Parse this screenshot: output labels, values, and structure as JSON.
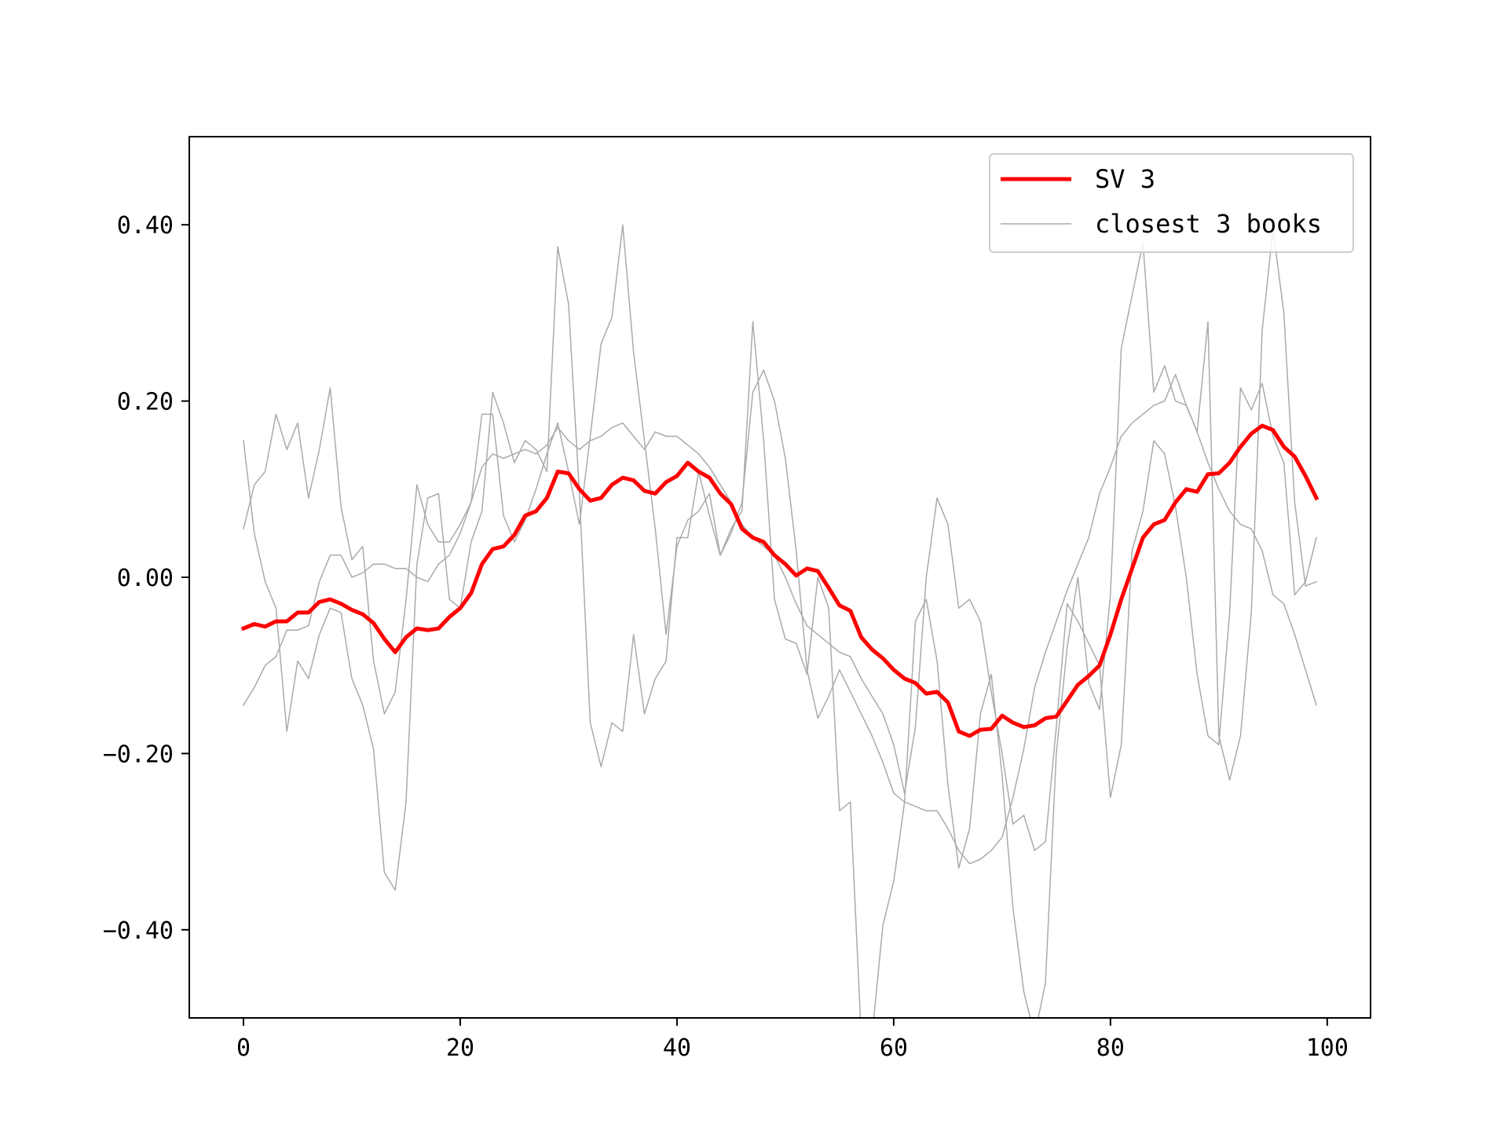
{
  "chart_data": {
    "type": "line",
    "xlim": [
      -5,
      104
    ],
    "ylim": [
      -0.5,
      0.5
    ],
    "x_ticks": [
      0,
      20,
      40,
      60,
      80,
      100
    ],
    "x_tick_labels": [
      "0",
      "20",
      "40",
      "60",
      "80",
      "100"
    ],
    "y_ticks": [
      0.4,
      0.2,
      0.0,
      -0.2,
      -0.4
    ],
    "y_tick_labels": [
      "0.40",
      "0.20",
      "0.00",
      "−0.20",
      "−0.40"
    ],
    "grid": false,
    "legend_position": "top-right",
    "series": [
      {
        "name": "SV 3",
        "color": "#ff0000",
        "emphasis": "thick",
        "values": [
          -0.058,
          -0.053,
          -0.056,
          -0.05,
          -0.05,
          -0.04,
          -0.04,
          -0.028,
          -0.025,
          -0.03,
          -0.037,
          -0.042,
          -0.052,
          -0.07,
          -0.085,
          -0.068,
          -0.058,
          -0.06,
          -0.058,
          -0.045,
          -0.035,
          -0.018,
          0.015,
          0.032,
          0.035,
          0.048,
          0.07,
          0.075,
          0.09,
          0.12,
          0.118,
          0.1,
          0.087,
          0.09,
          0.105,
          0.113,
          0.11,
          0.098,
          0.095,
          0.108,
          0.115,
          0.13,
          0.12,
          0.113,
          0.095,
          0.083,
          0.055,
          0.045,
          0.04,
          0.025,
          0.015,
          0.002,
          0.01,
          0.007,
          -0.012,
          -0.032,
          -0.038,
          -0.068,
          -0.082,
          -0.092,
          -0.105,
          -0.115,
          -0.12,
          -0.132,
          -0.13,
          -0.142,
          -0.175,
          -0.18,
          -0.173,
          -0.172,
          -0.157,
          -0.165,
          -0.17,
          -0.168,
          -0.16,
          -0.158,
          -0.14,
          -0.122,
          -0.112,
          -0.1,
          -0.065,
          -0.025,
          0.01,
          0.045,
          0.06,
          0.065,
          0.085,
          0.1,
          0.097,
          0.117,
          0.118,
          0.13,
          0.148,
          0.163,
          0.172,
          0.167,
          0.148,
          0.137,
          0.115,
          0.09
        ]
      },
      {
        "name": "closest 3 books",
        "color": "#aaaaaa",
        "values": [
          0.155,
          0.05,
          -0.005,
          -0.035,
          -0.175,
          -0.095,
          -0.115,
          -0.065,
          -0.035,
          -0.04,
          -0.115,
          -0.145,
          -0.195,
          -0.335,
          -0.355,
          -0.255,
          0.015,
          0.09,
          0.095,
          -0.025,
          -0.035,
          0.04,
          0.075,
          0.21,
          0.175,
          0.13,
          0.155,
          0.145,
          0.12,
          0.375,
          0.31,
          0.095,
          -0.165,
          -0.215,
          -0.165,
          -0.175,
          -0.065,
          -0.155,
          -0.115,
          -0.095,
          0.045,
          0.045,
          0.12,
          0.07,
          0.025,
          0.05,
          0.085,
          0.21,
          0.235,
          0.2,
          0.135,
          0.03,
          -0.105,
          -0.16,
          -0.135,
          -0.105,
          -0.13,
          -0.155,
          -0.18,
          -0.21,
          -0.245,
          -0.255,
          -0.26,
          -0.265,
          -0.265,
          -0.285,
          -0.31,
          -0.325,
          -0.32,
          -0.31,
          -0.295,
          -0.25,
          -0.195,
          -0.125,
          -0.085,
          -0.05,
          -0.015,
          0.015,
          0.045,
          0.095,
          0.125,
          0.16,
          0.175,
          0.185,
          0.195,
          0.2,
          0.23,
          0.195,
          0.165,
          0.13,
          0.1,
          0.075,
          0.06,
          0.055,
          0.03,
          -0.02,
          -0.03,
          -0.065,
          -0.105,
          -0.145
        ]
      },
      {
        "name": "closest 3 books",
        "color": "#aaaaaa",
        "values": [
          0.055,
          0.105,
          0.12,
          0.185,
          0.145,
          0.175,
          0.09,
          0.145,
          0.215,
          0.08,
          0.02,
          0.035,
          -0.095,
          -0.155,
          -0.13,
          -0.025,
          0.105,
          0.06,
          0.04,
          0.04,
          0.06,
          0.085,
          0.185,
          0.185,
          0.07,
          0.04,
          0.065,
          0.1,
          0.14,
          0.175,
          0.12,
          0.06,
          0.16,
          0.265,
          0.295,
          0.4,
          0.255,
          0.155,
          0.055,
          -0.065,
          0.035,
          0.065,
          0.075,
          0.095,
          0.025,
          0.055,
          0.075,
          0.29,
          0.155,
          -0.025,
          -0.07,
          -0.075,
          -0.11,
          0.0,
          -0.035,
          -0.265,
          -0.255,
          -0.52,
          -0.52,
          -0.395,
          -0.345,
          -0.255,
          -0.05,
          -0.025,
          -0.095,
          -0.235,
          -0.33,
          -0.285,
          -0.155,
          -0.11,
          -0.225,
          -0.375,
          -0.47,
          -0.52,
          -0.46,
          -0.2,
          -0.08,
          0.0,
          -0.12,
          -0.15,
          -0.02,
          0.26,
          0.32,
          0.38,
          0.21,
          0.24,
          0.2,
          0.195,
          0.165,
          0.29,
          -0.18,
          -0.23,
          -0.18,
          -0.04,
          0.28,
          0.395,
          0.3,
          0.085,
          -0.01,
          -0.005
        ]
      },
      {
        "name": "closest 3 books",
        "color": "#aaaaaa",
        "values": [
          -0.145,
          -0.125,
          -0.1,
          -0.09,
          -0.06,
          -0.06,
          -0.055,
          -0.005,
          0.025,
          0.025,
          0.0,
          0.005,
          0.015,
          0.015,
          0.01,
          0.01,
          0.0,
          -0.005,
          0.015,
          0.025,
          0.05,
          0.085,
          0.125,
          0.14,
          0.135,
          0.14,
          0.145,
          0.14,
          0.15,
          0.17,
          0.155,
          0.145,
          0.155,
          0.16,
          0.17,
          0.175,
          0.16,
          0.145,
          0.165,
          0.16,
          0.16,
          0.15,
          0.14,
          0.125,
          0.105,
          0.085,
          0.06,
          0.045,
          0.035,
          0.025,
          0.0,
          -0.03,
          -0.055,
          -0.065,
          -0.075,
          -0.085,
          -0.09,
          -0.115,
          -0.135,
          -0.155,
          -0.19,
          -0.245,
          -0.17,
          0.0,
          0.09,
          0.06,
          -0.035,
          -0.025,
          -0.05,
          -0.13,
          -0.2,
          -0.28,
          -0.27,
          -0.31,
          -0.3,
          -0.17,
          -0.03,
          -0.05,
          -0.075,
          -0.1,
          -0.25,
          -0.19,
          0.03,
          0.075,
          0.155,
          0.14,
          0.08,
          0.0,
          -0.11,
          -0.18,
          -0.19,
          -0.04,
          0.215,
          0.19,
          0.22,
          0.16,
          0.13,
          -0.02,
          -0.005,
          0.045
        ]
      }
    ]
  }
}
